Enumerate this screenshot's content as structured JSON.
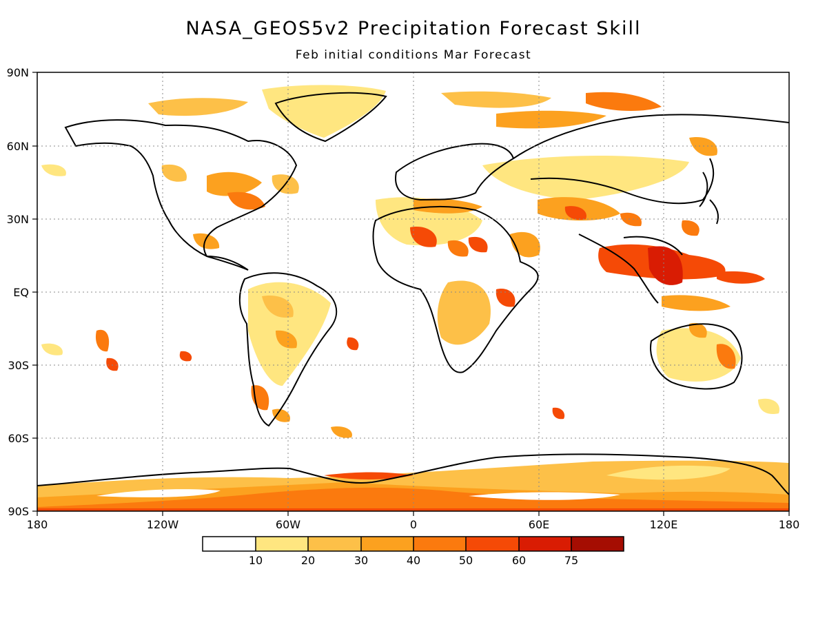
{
  "title": "NASA_GEOS5v2 Precipitation Forecast Skill",
  "subtitle": "Feb initial conditions  Mar Forecast",
  "map": {
    "projection": "cylindrical-equidistant",
    "lon_range": [
      -180,
      180
    ],
    "lat_range": [
      -90,
      90
    ],
    "grid": "dotted",
    "x_tick_labels": [
      "180",
      "120W",
      "60W",
      "0",
      "60E",
      "120E",
      "180"
    ],
    "y_tick_labels": [
      "90N",
      "60N",
      "30N",
      "EQ",
      "30S",
      "60S",
      "90S"
    ]
  },
  "legend": {
    "labels": [
      "10",
      "20",
      "30",
      "40",
      "50",
      "60",
      "75"
    ],
    "colors": [
      "#ffffff",
      "#ffe680",
      "#fdc048",
      "#fca11f",
      "#fb7a0e",
      "#f54a06",
      "#d91c03",
      "#a50d02"
    ]
  }
}
